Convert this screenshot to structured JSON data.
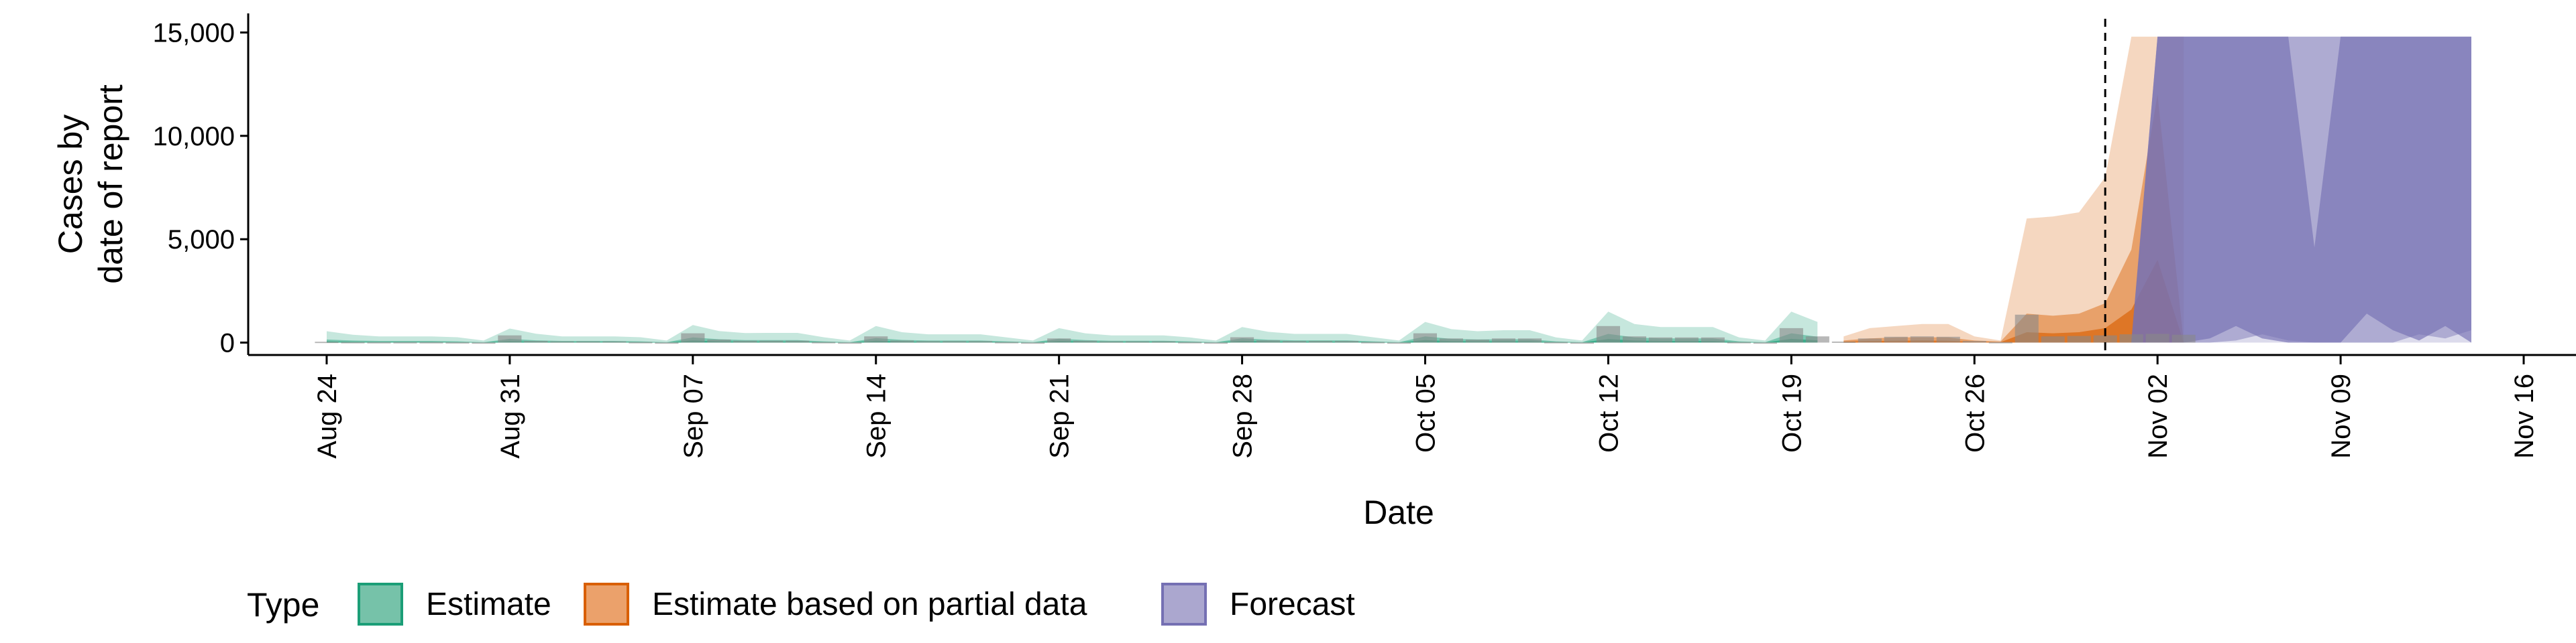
{
  "chart_data": {
    "type": "area",
    "xlabel": "Date",
    "ylabel": [
      "Cases by",
      "date of report"
    ],
    "ylim": [
      -600,
      15600
    ],
    "yticks": [
      0,
      5000,
      10000,
      15000
    ],
    "ytick_labels": [
      "0",
      "5,000",
      "10,000",
      "15,000"
    ],
    "xlim": [
      "2020-08-21",
      "2020-11-18"
    ],
    "xticks": [
      "2020-08-24",
      "2020-08-31",
      "2020-09-07",
      "2020-09-14",
      "2020-09-21",
      "2020-09-28",
      "2020-10-05",
      "2020-10-12",
      "2020-10-19",
      "2020-10-26",
      "2020-11-02",
      "2020-11-09",
      "2020-11-16"
    ],
    "xtick_labels": [
      "Aug 24",
      "Aug 31",
      "Sep 07",
      "Sep 14",
      "Sep 21",
      "Sep 28",
      "Oct 05",
      "Oct 12",
      "Oct 19",
      "Oct 26",
      "Nov 02",
      "Nov 09",
      "Nov 16"
    ],
    "forecast_date": "2020-10-31",
    "legend": {
      "title": "Type",
      "position": "bottom",
      "items": [
        {
          "label": "Estimate",
          "fill": "#76c2a9",
          "stroke": "#1b9e77"
        },
        {
          "label": "Estimate based on partial data",
          "fill": "#eba16b",
          "stroke": "#d95f02"
        },
        {
          "label": "Forecast",
          "fill": "#aba7cf",
          "stroke": "#7570b3"
        }
      ]
    },
    "colors": {
      "Estimate": "#1b9e77",
      "Estimate based on partial data": "#d95f02",
      "Forecast": "#7570b3",
      "reported_cases": "#888888"
    },
    "series": [
      {
        "name": "Estimate",
        "start_date": "2020-08-24",
        "ci90_upper": [
          550,
          380,
          300,
          300,
          300,
          260,
          100,
          680,
          430,
          300,
          300,
          300,
          260,
          100,
          850,
          560,
          460,
          470,
          470,
          260,
          100,
          800,
          500,
          400,
          400,
          400,
          250,
          100,
          700,
          450,
          350,
          350,
          350,
          250,
          100,
          750,
          520,
          420,
          420,
          420,
          260,
          100,
          1000,
          650,
          550,
          600,
          600,
          250,
          100,
          1500,
          900,
          750,
          750,
          750,
          250,
          100,
          1500,
          1000
        ],
        "ci90_lower": [
          0,
          0,
          0,
          0,
          0,
          0,
          0,
          0,
          0,
          0,
          0,
          0,
          0,
          0,
          0,
          0,
          0,
          0,
          0,
          0,
          0,
          0,
          0,
          0,
          0,
          0,
          0,
          0,
          0,
          0,
          0,
          0,
          0,
          0,
          0,
          0,
          0,
          0,
          0,
          0,
          0,
          0,
          0,
          0,
          0,
          0,
          0,
          0,
          0,
          0,
          0,
          0,
          0,
          0,
          0,
          0,
          0,
          0
        ],
        "ci50_upper": [
          150,
          100,
          80,
          80,
          80,
          60,
          20,
          180,
          110,
          80,
          80,
          80,
          60,
          20,
          250,
          160,
          120,
          120,
          120,
          60,
          20,
          220,
          130,
          100,
          100,
          100,
          60,
          20,
          190,
          120,
          90,
          90,
          90,
          60,
          20,
          210,
          140,
          110,
          110,
          110,
          60,
          20,
          300,
          180,
          150,
          160,
          160,
          60,
          20,
          420,
          250,
          200,
          200,
          200,
          60,
          20,
          450,
          280
        ],
        "ci50_lower": [
          0,
          0,
          0,
          0,
          0,
          0,
          0,
          0,
          0,
          0,
          0,
          0,
          0,
          0,
          0,
          0,
          0,
          0,
          0,
          0,
          0,
          0,
          0,
          0,
          0,
          0,
          0,
          0,
          0,
          0,
          0,
          0,
          0,
          0,
          0,
          0,
          0,
          0,
          0,
          0,
          0,
          0,
          0,
          0,
          0,
          0,
          0,
          0,
          0,
          0,
          0,
          0,
          0,
          0,
          0,
          0,
          0,
          0
        ],
        "ci20_upper": [
          60,
          40,
          30,
          30,
          30,
          20,
          10,
          70,
          45,
          30,
          30,
          30,
          20,
          10,
          100,
          60,
          50,
          50,
          50,
          20,
          10,
          90,
          55,
          40,
          40,
          40,
          20,
          10,
          80,
          50,
          35,
          35,
          35,
          20,
          10,
          85,
          55,
          45,
          45,
          45,
          20,
          10,
          120,
          70,
          60,
          65,
          65,
          20,
          10,
          170,
          100,
          80,
          80,
          80,
          20,
          10,
          180,
          110
        ],
        "ci20_lower": [
          0,
          0,
          0,
          0,
          0,
          0,
          0,
          0,
          0,
          0,
          0,
          0,
          0,
          0,
          0,
          0,
          0,
          0,
          0,
          0,
          0,
          0,
          0,
          0,
          0,
          0,
          0,
          0,
          0,
          0,
          0,
          0,
          0,
          0,
          0,
          0,
          0,
          0,
          0,
          0,
          0,
          0,
          0,
          0,
          0,
          0,
          0,
          0,
          0,
          0,
          0,
          0,
          0,
          0,
          0,
          0,
          0,
          0
        ]
      },
      {
        "name": "Estimate based on partial data",
        "start_date": "2020-10-21",
        "ci90_upper": [
          300,
          700,
          800,
          900,
          900,
          300,
          100,
          6000,
          6100,
          6300,
          8000,
          14800,
          14800,
          14800
        ],
        "ci90_lower": [
          0,
          0,
          0,
          0,
          0,
          0,
          0,
          0,
          0,
          0,
          0,
          0,
          0,
          0
        ],
        "ci50_upper": [
          100,
          200,
          250,
          260,
          250,
          100,
          50,
          1400,
          1300,
          1400,
          1900,
          4500,
          12000,
          0
        ],
        "ci50_lower": [
          0,
          0,
          0,
          0,
          0,
          0,
          0,
          0,
          0,
          0,
          0,
          0,
          0,
          0
        ],
        "ci20_upper": [
          50,
          80,
          90,
          100,
          90,
          40,
          20,
          500,
          450,
          500,
          700,
          1600,
          4000,
          0
        ],
        "ci20_lower": [
          0,
          0,
          0,
          0,
          0,
          0,
          0,
          0,
          0,
          0,
          0,
          0,
          0,
          0
        ]
      },
      {
        "name": "Forecast",
        "start_date": "2020-11-01",
        "ci90_upper": [
          100,
          14800,
          14800,
          14800,
          14800,
          14800,
          14800,
          14800,
          14800,
          14800,
          14800,
          14800,
          14800,
          14800
        ],
        "ci90_lower": [
          0,
          0,
          0,
          0,
          0,
          0,
          0,
          0,
          0,
          0,
          0,
          0,
          0,
          0
        ],
        "ci50_upper": [
          50,
          14800,
          14800,
          14800,
          14800,
          14800,
          14800,
          14800,
          14800,
          14800,
          14800,
          14800,
          14800,
          14800
        ],
        "ci50_lower": [
          0,
          0,
          0,
          0,
          100,
          400,
          100,
          0,
          0,
          0,
          0,
          400,
          200,
          600
        ],
        "ci20_upper": [
          0,
          14800,
          14800,
          14800,
          14800,
          14800,
          14800,
          4600,
          14800,
          14800,
          14800,
          14800,
          14800,
          14800
        ],
        "ci20_lower": [
          0,
          0,
          0,
          200,
          800,
          200,
          0,
          0,
          0,
          1400,
          600,
          100,
          800,
          0
        ]
      }
    ],
    "reported_cases": {
      "start_date": "2020-08-24",
      "values": [
        40,
        30,
        25,
        25,
        25,
        20,
        10,
        350,
        80,
        60,
        60,
        60,
        30,
        10,
        450,
        150,
        90,
        90,
        90,
        30,
        10,
        300,
        100,
        70,
        70,
        70,
        30,
        10,
        200,
        90,
        60,
        60,
        60,
        30,
        10,
        260,
        110,
        80,
        80,
        80,
        30,
        10,
        450,
        200,
        150,
        200,
        200,
        30,
        10,
        800,
        300,
        250,
        250,
        250,
        30,
        10,
        700,
        300,
        50,
        200,
        280,
        300,
        280,
        80,
        30,
        1350,
        300,
        320,
        350,
        400,
        420,
        380
      ]
    }
  }
}
